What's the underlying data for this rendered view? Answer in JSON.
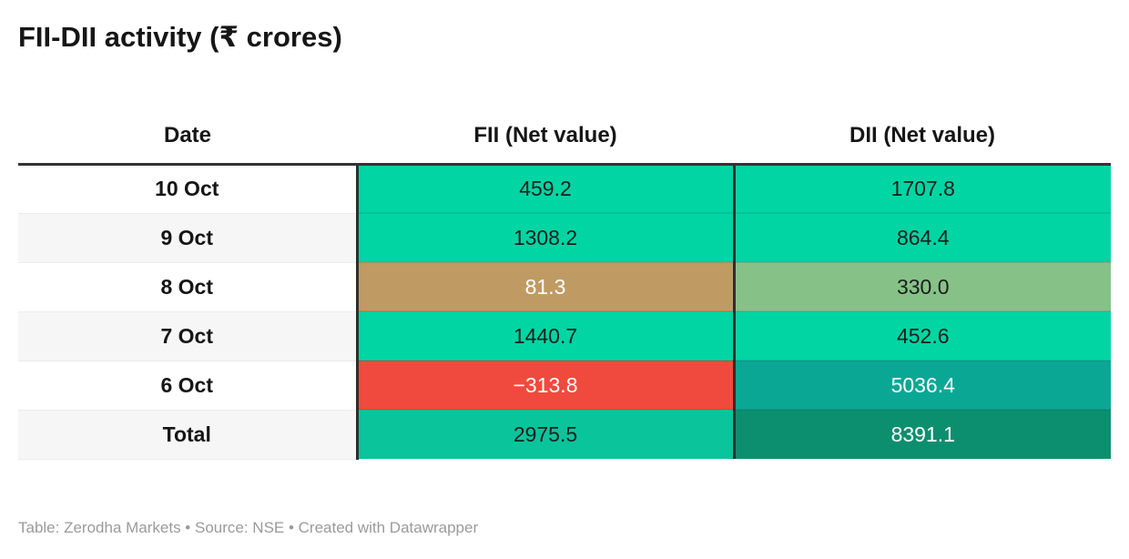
{
  "title": "FII-DII activity (₹ crores)",
  "header": {
    "date": "Date",
    "fii": "FII (Net value)",
    "dii": "DII (Net value)"
  },
  "table": {
    "rows": [
      {
        "date": "10 Oct",
        "date_bg": "#ffffff",
        "fii": "459.2",
        "fii_bg": "#00d5a3",
        "fii_fg": "#1d1d1d",
        "dii": "1707.8",
        "dii_bg": "#00d5a3",
        "dii_fg": "#1d1d1d"
      },
      {
        "date": "9 Oct",
        "date_bg": "#f6f6f6",
        "fii": "1308.2",
        "fii_bg": "#00d5a3",
        "fii_fg": "#1d1d1d",
        "dii": "864.4",
        "dii_bg": "#00d5a3",
        "dii_fg": "#1d1d1d"
      },
      {
        "date": "8 Oct",
        "date_bg": "#ffffff",
        "fii": "81.3",
        "fii_bg": "#bf9b63",
        "fii_fg": "#ffffff",
        "dii": "330.0",
        "dii_bg": "#86c287",
        "dii_fg": "#1d1d1d"
      },
      {
        "date": "7 Oct",
        "date_bg": "#f6f6f6",
        "fii": "1440.7",
        "fii_bg": "#00d5a3",
        "fii_fg": "#1d1d1d",
        "dii": "452.6",
        "dii_bg": "#00d5a3",
        "dii_fg": "#1d1d1d"
      },
      {
        "date": "6 Oct",
        "date_bg": "#ffffff",
        "fii": "−313.8",
        "fii_bg": "#f04a3e",
        "fii_fg": "#ffffff",
        "dii": "5036.4",
        "dii_bg": "#0ba795",
        "dii_fg": "#ffffff"
      },
      {
        "date": "Total",
        "date_bg": "#f6f6f6",
        "fii": "2975.5",
        "fii_bg": "#0ac49c",
        "fii_fg": "#1d1d1d",
        "dii": "8391.1",
        "dii_bg": "#0c8f6f",
        "dii_fg": "#ffffff"
      }
    ]
  },
  "footer": "Table: Zerodha Markets • Source: NSE • Created with Datawrapper",
  "colors": {
    "positive_green": "#00d5a3",
    "total_fii_green": "#0ac49c",
    "near_zero_tan": "#bf9b63",
    "low_sage_green": "#86c287",
    "negative_red": "#f04a3e",
    "high_teal": "#0ba795",
    "total_dark_green": "#0c8f6f",
    "header_rule": "#333333",
    "column_divider": "#2e2e2e",
    "alt_row_gray": "#f6f6f6",
    "footer_gray": "#9b9b9b"
  },
  "chart_data": {
    "type": "table",
    "title": "FII-DII activity (₹ crores)",
    "columns": [
      "Date",
      "FII (Net value)",
      "DII (Net value)"
    ],
    "rows": [
      [
        "10 Oct",
        459.2,
        1707.8
      ],
      [
        "9 Oct",
        1308.2,
        864.4
      ],
      [
        "8 Oct",
        81.3,
        330.0
      ],
      [
        "7 Oct",
        1440.7,
        452.6
      ],
      [
        "6 Oct",
        -313.8,
        5036.4
      ],
      [
        "Total",
        2975.5,
        8391.1
      ]
    ],
    "notes": "Cell background encodes value: red = negative, tan/sage = small, bright green = medium, teal/dark green = large",
    "footnote": "Table: Zerodha Markets • Source: NSE • Created with Datawrapper"
  }
}
